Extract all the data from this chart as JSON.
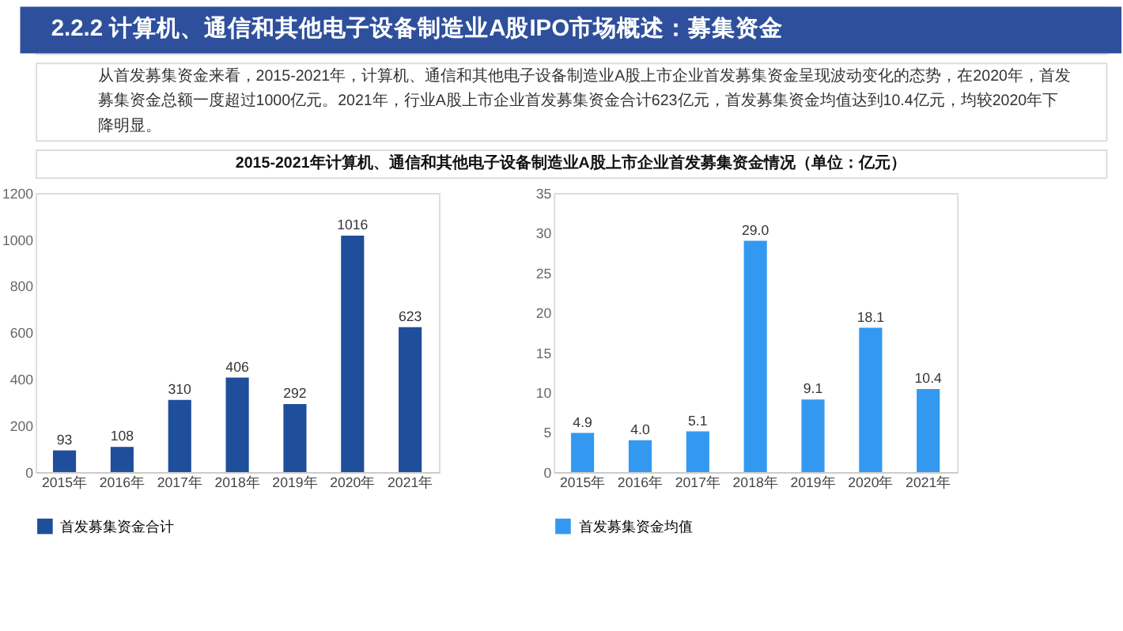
{
  "chart_data": [
    {
      "type": "bar",
      "title": "2015-2021年计算机、通信和其他电子设备制造业A股上市企业首发募集资金情况（单位：亿元）",
      "annotations": [
        "2.2.2 计算机、通信和其他电子设备制造业A股IPO市场概述：募集资金",
        "从首发募集资金来看，2015-2021年，计算机、通信和其他电子设备制造业A股上市企业首发募集资金呈现波动变化的态势，在2020年，首发募集资金总额一度超过1000亿元。2021年，行业A股上市企业首发募集资金合计623亿元，首发募集资金均值达到10.4亿元，均较2020年下降明显。"
      ],
      "categories": [
        "2015年",
        "2016年",
        "2017年",
        "2018年",
        "2019年",
        "2020年",
        "2021年"
      ],
      "series": [
        {
          "name": "首发募集资金合计",
          "color": "#1f4e9a",
          "values": [
            93,
            108,
            310,
            406,
            292,
            1016,
            623
          ]
        }
      ],
      "ylim": [
        0,
        1200
      ],
      "yticks": [
        0,
        200,
        400,
        600,
        800,
        1000,
        1200
      ],
      "data_labels": true,
      "legend": "bottom",
      "grid": false
    },
    {
      "type": "bar",
      "categories": [
        "2015年",
        "2016年",
        "2017年",
        "2018年",
        "2019年",
        "2020年",
        "2021年"
      ],
      "series": [
        {
          "name": "首发募集资金均值",
          "color": "#3399f0",
          "values": [
            4.9,
            4.0,
            5.1,
            29.0,
            9.1,
            18.1,
            10.4
          ],
          "value_labels": [
            "4.9",
            "4.0",
            "5.1",
            "29.0",
            "9.1",
            "18.1",
            "10.4"
          ]
        }
      ],
      "ylim": [
        0,
        35
      ],
      "yticks": [
        0,
        5,
        10,
        15,
        20,
        25,
        30,
        35
      ],
      "legend": "bottom",
      "grid": false
    }
  ]
}
